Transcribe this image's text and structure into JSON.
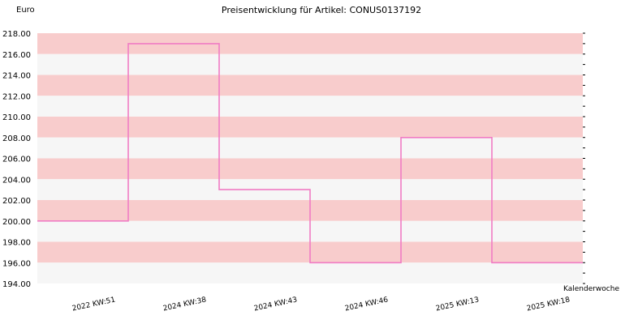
{
  "chart_data": {
    "type": "line",
    "step": true,
    "title": "Preisentwicklung für Artikel: CONUS0137192",
    "ylabel": "Euro",
    "xlabel": "Kalenderwoche",
    "ylim": [
      194,
      218
    ],
    "yticks": [
      "194.00",
      "196.00",
      "198.00",
      "200.00",
      "202.00",
      "204.00",
      "206.00",
      "208.00",
      "210.00",
      "212.00",
      "214.00",
      "216.00",
      "218.00"
    ],
    "categories": [
      "2022 KW:51",
      "2024 KW:38",
      "2024 KW:43",
      "2024 KW:46",
      "2025 KW:13",
      "2025 KW:18"
    ],
    "values": [
      200,
      217,
      203,
      196,
      208,
      196
    ],
    "grid": true,
    "band_colors": [
      "#f8cccc",
      "#f6f6f6"
    ],
    "line_color": "#f07cc4"
  }
}
